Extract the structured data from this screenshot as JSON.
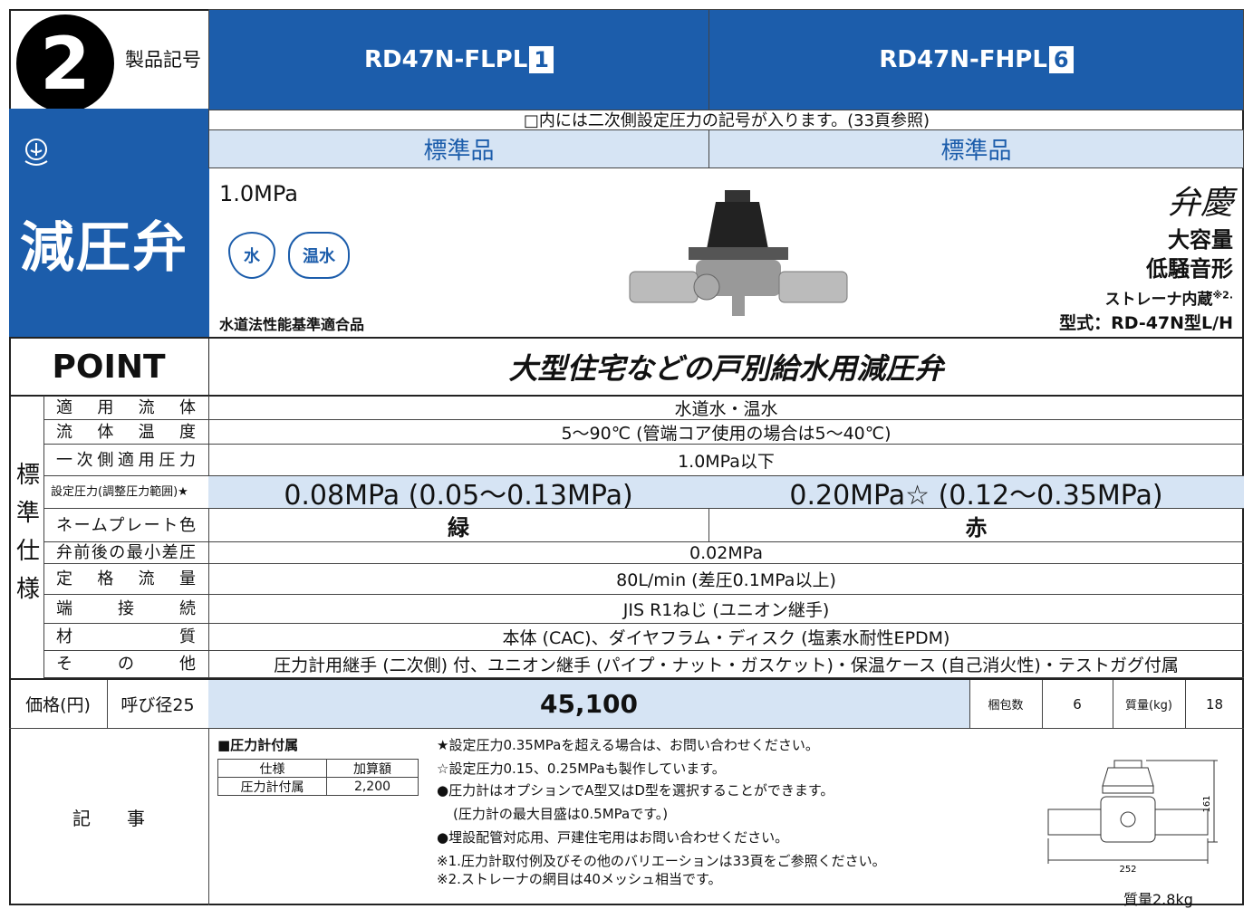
{
  "header": {
    "badge": "2",
    "label": "製品記号",
    "models": [
      {
        "name": "RD47N-FLPL",
        "code": "1"
      },
      {
        "name": "RD47N-FHPL",
        "code": "6"
      }
    ]
  },
  "side": {
    "title": "減圧弁"
  },
  "note_row": "□内には二次側設定圧力の記号が入ります。(33頁参照)",
  "grades": [
    "標準品",
    "標準品"
  ],
  "product": {
    "pressure": "1.0MPa",
    "media": [
      "水",
      "温水"
    ],
    "certification": "水道法性能基準適合品",
    "brand": "弁慶",
    "features": [
      "大容量",
      "低騒音形"
    ],
    "strainer": "ストレーナ内蔵",
    "strainer_note": "※2.",
    "model": "型式：RD-47N型L/H"
  },
  "point": {
    "label": "POINT",
    "text": "大型住宅などの戸別給水用減圧弁"
  },
  "specs": {
    "group": "標準仕様",
    "rows": [
      {
        "label": "適用流体",
        "values": [
          "水道水・温水"
        ]
      },
      {
        "label": "流体温度",
        "values": [
          "5〜90℃ (管端コア使用の場合は5〜40℃)"
        ]
      },
      {
        "label": "一次側適用圧力",
        "values": [
          "1.0MPa以下"
        ]
      },
      {
        "label": "設定圧力(調整圧力範囲)★",
        "values": [
          "0.08MPa (0.05〜0.13MPa)",
          "0.20MPa☆ (0.12〜0.35MPa)"
        ]
      },
      {
        "label": "ネームプレート色",
        "values": [
          "緑",
          "赤"
        ]
      },
      {
        "label": "弁前後の最小差圧",
        "values": [
          "0.02MPa"
        ]
      },
      {
        "label": "定格流量",
        "values": [
          "80L/min (差圧0.1MPa以上)"
        ]
      },
      {
        "label": "端接続",
        "values": [
          "JIS R1ねじ (ユニオン継手)"
        ]
      },
      {
        "label": "材質",
        "values": [
          "本体 (CAC)、ダイヤフラム・ディスク (塩素水耐性EPDM)"
        ]
      },
      {
        "label": "その他",
        "values": [
          "圧力計用継手 (二次側) 付、ユニオン継手 (パイプ・ナット・ガスケット)・保温ケース (自己消火性)・テストガグ付属"
        ]
      }
    ]
  },
  "price": {
    "label": "価格(円)",
    "size": "呼び径25",
    "amount": "45,100",
    "pack_label": "梱包数",
    "pack": 6,
    "weight_label": "質量(kg)",
    "weight": 18
  },
  "notes": {
    "label": "記事",
    "gauge_title": "■圧力計付属",
    "gauge_table": {
      "header": [
        "仕様",
        "加算額"
      ],
      "rows": [
        [
          "圧力計付属",
          "2,200"
        ]
      ]
    },
    "lines": [
      "★設定圧力0.35MPaを超える場合は、お問い合わせください。",
      "☆設定圧力0.15、0.25MPaも製作しています。",
      "●圧力計はオプションでA型又はD型を選択することができます。",
      "(圧力計の最大目盛は0.5MPaです。)",
      "●埋設配管対応用、戸建住宅用はお問い合わせください。",
      "※1.圧力計取付例及びその他のバリエーションは33頁をご参照ください。",
      "※2.ストレーナの網目は40メッシュ相当です。"
    ],
    "dims": {
      "height": "161",
      "width": "252",
      "weight": "質量2.8kg"
    }
  }
}
